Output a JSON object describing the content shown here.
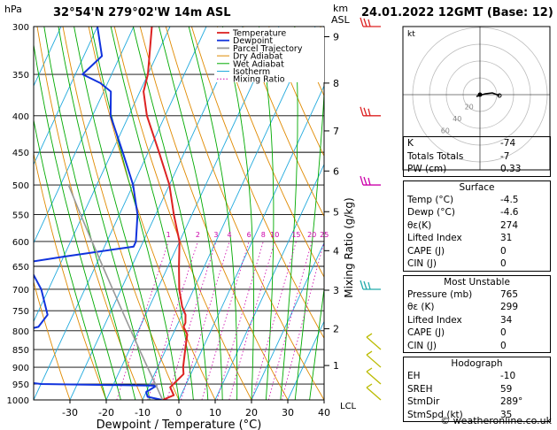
{
  "header": {
    "location": "32°54'N  279°02'W  14m  ASL",
    "datetime": "24.01.2022  12GMT  (Base: 12)"
  },
  "axes": {
    "left_unit": "hPa",
    "right_unit_1": "km",
    "right_unit_2": "ASL",
    "xlabel": "Dewpoint / Temperature (°C)",
    "mixing_ratio_label": "Mixing Ratio (g/kg)",
    "lcl_label": "LCL"
  },
  "hodograph": {
    "unit_label": "kt",
    "rings": [
      "20",
      "40",
      "60"
    ]
  },
  "indices": {
    "rows": [
      {
        "label": "K",
        "value": "-74"
      },
      {
        "label": "Totals Totals",
        "value": "-7"
      },
      {
        "label": "PW (cm)",
        "value": "0.33"
      }
    ]
  },
  "surface": {
    "title": "Surface",
    "rows": [
      {
        "label": "Temp (°C)",
        "value": "-4.5"
      },
      {
        "label": "Dewp (°C)",
        "value": "-4.6"
      },
      {
        "label": "θε(K)",
        "value": "274"
      },
      {
        "label": "Lifted Index",
        "value": "31"
      },
      {
        "label": "CAPE (J)",
        "value": "0"
      },
      {
        "label": "CIN (J)",
        "value": "0"
      }
    ]
  },
  "most_unstable": {
    "title": "Most Unstable",
    "rows": [
      {
        "label": "Pressure (mb)",
        "value": "765"
      },
      {
        "label": "θε (K)",
        "value": "299"
      },
      {
        "label": "Lifted Index",
        "value": "34"
      },
      {
        "label": "CAPE (J)",
        "value": "0"
      },
      {
        "label": "CIN (J)",
        "value": "0"
      }
    ]
  },
  "hodograph_table": {
    "title": "Hodograph",
    "rows": [
      {
        "label": "EH",
        "value": "-10"
      },
      {
        "label": "SREH",
        "value": "59"
      },
      {
        "label": "StmDir",
        "value": "289°"
      },
      {
        "label": "StmSpd (kt)",
        "value": "35"
      }
    ]
  },
  "credit": "© weatheronline.co.uk",
  "colors": {
    "temperature": "#dd2222",
    "dewpoint": "#1133dd",
    "parcel": "#999999",
    "dry_adiabat": "#e08a00",
    "wet_adiabat": "#00aa00",
    "isotherm": "#22aadd",
    "mixing_ratio": "#cc00aa"
  },
  "chart_data": {
    "type": "line",
    "title": "",
    "xlabel": "Dewpoint / Temperature (°C)",
    "ylabel": "hPa",
    "xlim": [
      -40,
      40
    ],
    "ylim": [
      1000,
      300
    ],
    "x_ticks": [
      "-30",
      "-20",
      "-10",
      "0",
      "10",
      "20",
      "30",
      "40"
    ],
    "y_ticks": [
      "300",
      "350",
      "400",
      "450",
      "500",
      "550",
      "600",
      "650",
      "700",
      "750",
      "800",
      "850",
      "900",
      "950",
      "1000"
    ],
    "km_ticks": [
      {
        "p": 310,
        "label": "9"
      },
      {
        "p": 360,
        "label": "8"
      },
      {
        "p": 420,
        "label": "7"
      },
      {
        "p": 478,
        "label": "6"
      },
      {
        "p": 545,
        "label": "5"
      },
      {
        "p": 618,
        "label": "4"
      },
      {
        "p": 702,
        "label": "3"
      },
      {
        "p": 795,
        "label": "2"
      },
      {
        "p": 895,
        "label": "1"
      }
    ],
    "mixing_ratio_labels": [
      "1",
      "2",
      "3",
      "4",
      "6",
      "8",
      "10",
      "15",
      "20",
      "25"
    ],
    "legend": [
      "Temperature",
      "Dewpoint",
      "Parcel Trajectory",
      "Dry Adiabat",
      "Wet Adiabat",
      "Isotherm",
      "Mixing Ratio"
    ],
    "legend_position": "top-left",
    "series": [
      {
        "name": "Temperature",
        "points": [
          [
            1000,
            -4.5
          ],
          [
            985,
            -2
          ],
          [
            960,
            -4
          ],
          [
            940,
            -3
          ],
          [
            920,
            -2
          ],
          [
            900,
            -3
          ],
          [
            870,
            -4
          ],
          [
            840,
            -5
          ],
          [
            810,
            -6
          ],
          [
            790,
            -8
          ],
          [
            780,
            -8
          ],
          [
            760,
            -9
          ],
          [
            740,
            -11
          ],
          [
            700,
            -14
          ],
          [
            650,
            -17
          ],
          [
            600,
            -20
          ],
          [
            550,
            -25
          ],
          [
            500,
            -30
          ],
          [
            450,
            -37
          ],
          [
            400,
            -45
          ],
          [
            370,
            -49
          ],
          [
            350,
            -50
          ],
          [
            300,
            -55
          ]
        ]
      },
      {
        "name": "Dewpoint",
        "points": [
          [
            1000,
            -4.6
          ],
          [
            990,
            -9
          ],
          [
            975,
            -10
          ],
          [
            955,
            -8
          ],
          [
            950,
            -40
          ],
          [
            940,
            -48
          ],
          [
            900,
            -50
          ],
          [
            860,
            -52
          ],
          [
            800,
            -52
          ],
          [
            790,
            -48
          ],
          [
            760,
            -47
          ],
          [
            700,
            -52
          ],
          [
            660,
            -57
          ],
          [
            650,
            -60
          ],
          [
            640,
            -58
          ],
          [
            630,
            -50
          ],
          [
            610,
            -32
          ],
          [
            600,
            -32
          ],
          [
            550,
            -35
          ],
          [
            500,
            -40
          ],
          [
            450,
            -47
          ],
          [
            400,
            -55
          ],
          [
            370,
            -58
          ],
          [
            360,
            -62
          ],
          [
            350,
            -68
          ],
          [
            330,
            -65
          ],
          [
            300,
            -70
          ]
        ]
      },
      {
        "name": "Parcel Trajectory",
        "points": [
          [
            1000,
            -4.5
          ],
          [
            950,
            -8.5
          ],
          [
            900,
            -12.8
          ],
          [
            850,
            -17.3
          ],
          [
            800,
            -22
          ],
          [
            750,
            -27
          ],
          [
            700,
            -32.3
          ],
          [
            650,
            -38
          ],
          [
            600,
            -44.1
          ],
          [
            550,
            -50.7
          ],
          [
            500,
            -57.8
          ]
        ]
      }
    ]
  }
}
